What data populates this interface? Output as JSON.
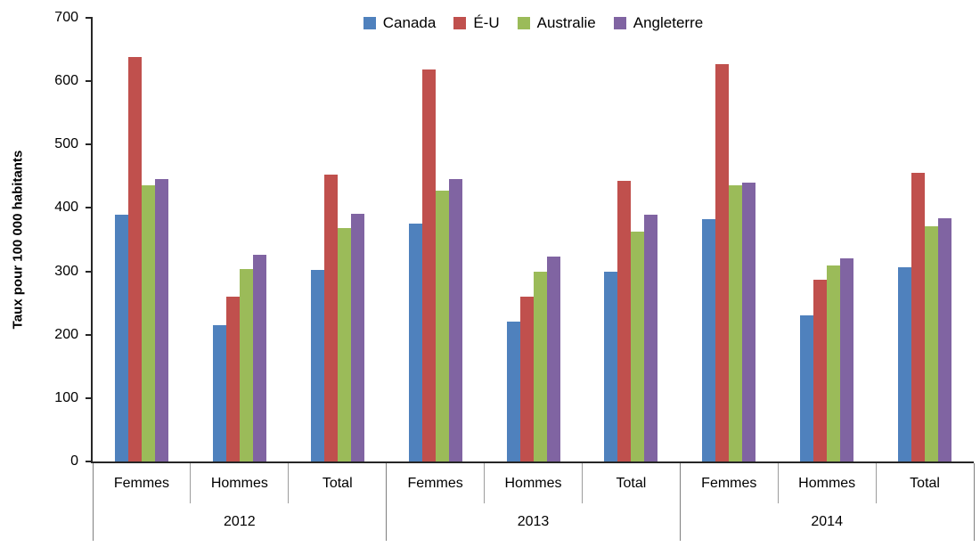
{
  "chart_data": {
    "type": "bar",
    "title": "",
    "ylabel": "Taux pour 100 000 habitants",
    "xlabel": "",
    "ylim": [
      0,
      700
    ],
    "ytick_step": 100,
    "grid": false,
    "legend_position": "top-center",
    "axis_color": "#262626",
    "groups": [
      {
        "label": "2012",
        "categories": [
          "Femmes",
          "Hommes",
          "Total"
        ]
      },
      {
        "label": "2013",
        "categories": [
          "Femmes",
          "Hommes",
          "Total"
        ]
      },
      {
        "label": "2014",
        "categories": [
          "Femmes",
          "Hommes",
          "Total"
        ]
      }
    ],
    "series": [
      {
        "name": "Canada",
        "color": "#4F81BD",
        "values": [
          389,
          215,
          302,
          376,
          221,
          300,
          383,
          230,
          306
        ]
      },
      {
        "name": "É-U",
        "color": "#C0504D",
        "values": [
          638,
          260,
          453,
          618,
          260,
          443,
          627,
          287,
          456
        ]
      },
      {
        "name": "Australie",
        "color": "#9BBB59",
        "values": [
          436,
          303,
          368,
          428,
          300,
          362,
          436,
          309,
          371
        ]
      },
      {
        "name": "Angleterre",
        "color": "#8064A2",
        "values": [
          446,
          326,
          391,
          445,
          324,
          389,
          440,
          320,
          384
        ]
      }
    ]
  }
}
